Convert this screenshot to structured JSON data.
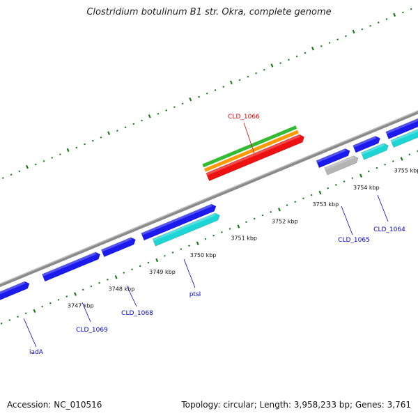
{
  "title": "Clostridium botulinum B1 str. Okra, complete genome",
  "footer": {
    "accession": "Accession: NC_010516",
    "summary": "Topology: circular; Length: 3,958,233 bp; Genes: 3,761"
  },
  "colors": {
    "backbone": "#8a8a8a",
    "tick": "#1a7a1a",
    "cds_blue": "#1a1aee",
    "cds_cyan": "#1cd6d6",
    "cds_gray": "#b4b4b4",
    "label_blue": "#0000cc",
    "label_red": "#dd0000",
    "band_green": "#33bb33",
    "band_orange": "#ff9900",
    "band_red": "#ee1111"
  },
  "ticks": [
    {
      "kbp": 3747,
      "label": "3747 kbp"
    },
    {
      "kbp": 3748,
      "label": "3748 kbp"
    },
    {
      "kbp": 3749,
      "label": "3749 kbp"
    },
    {
      "kbp": 3750,
      "label": "3750 kbp"
    },
    {
      "kbp": 3751,
      "label": "3751 kbp"
    },
    {
      "kbp": 3752,
      "label": "3752 kbp"
    },
    {
      "kbp": 3753,
      "label": "3753 kbp"
    },
    {
      "kbp": 3754,
      "label": "3754 kbp"
    },
    {
      "kbp": 3755,
      "label": "3755 kbp"
    }
  ],
  "genes": [
    {
      "label": "iadA",
      "color": "blue",
      "strand": "+"
    },
    {
      "label": "CLD_1069",
      "color": "blue",
      "strand": "+"
    },
    {
      "label": "CLD_1068",
      "color": "blue",
      "strand": "+"
    },
    {
      "label": "ptsI",
      "color": "cyan",
      "strand": "+"
    },
    {
      "label": "CLD_1065",
      "color": "blue",
      "strand": "+"
    },
    {
      "label": "CLD_1064",
      "color": "cyan",
      "strand": "+"
    },
    {
      "label": "CLD_1066",
      "color": "red",
      "strand": "-"
    }
  ]
}
